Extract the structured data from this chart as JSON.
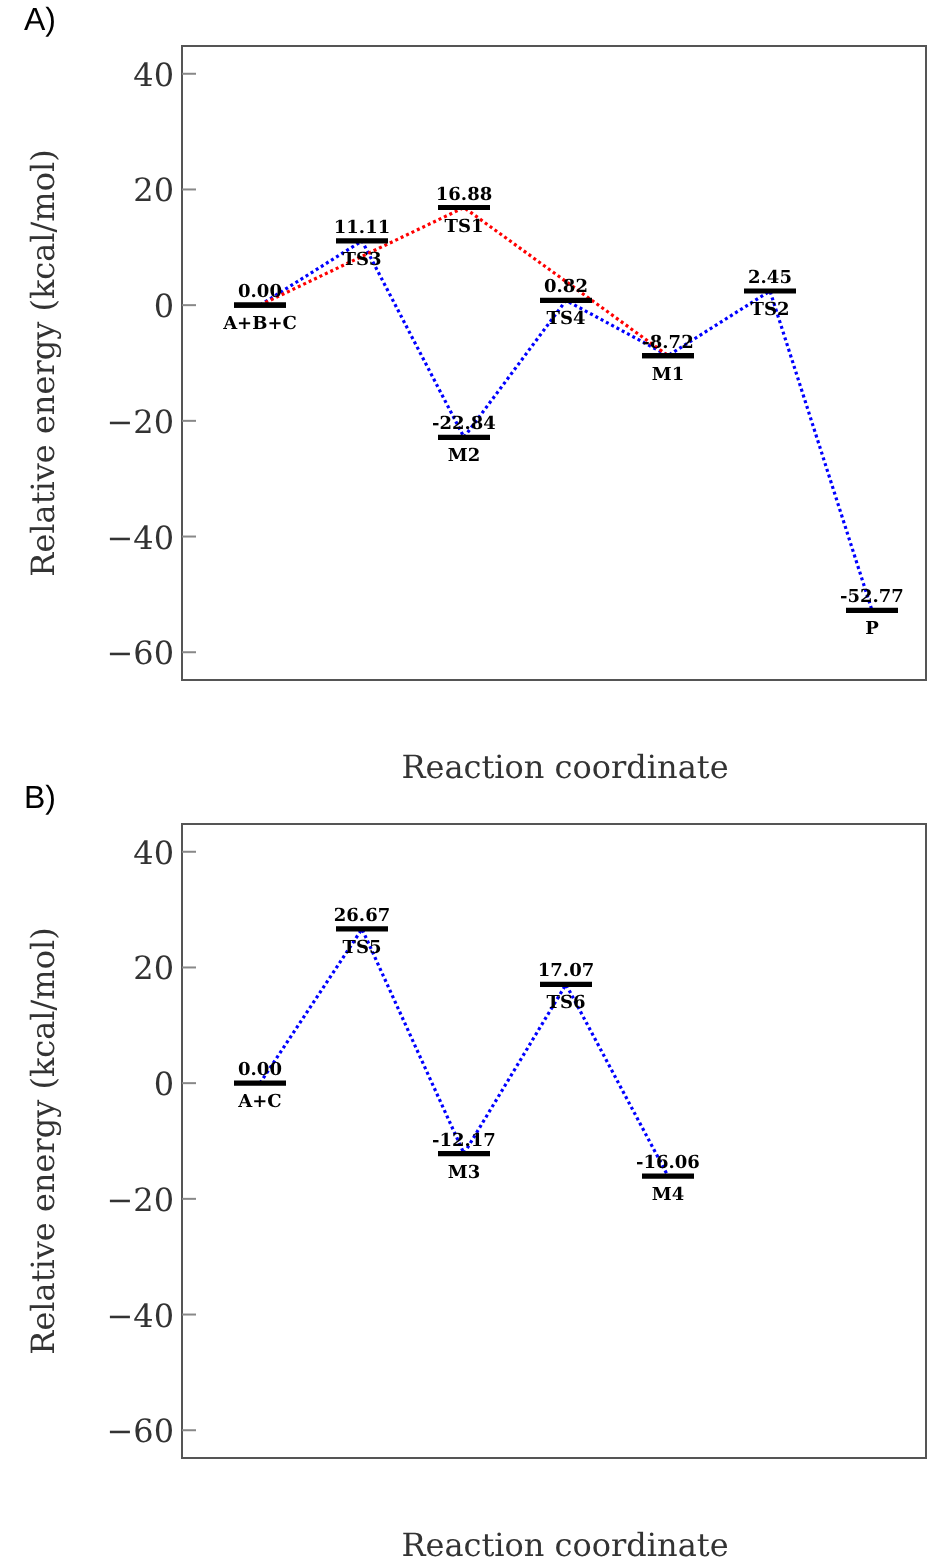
{
  "chart_data": [
    {
      "type": "line",
      "title": "A)",
      "xlabel": "Reaction coordinate",
      "ylabel": "Relative energy (kcal/mol)",
      "categories": [
        "A+B+C",
        "TS3",
        "M2",
        "TS4",
        "M1",
        "TS2",
        "P"
      ],
      "series": [
        {
          "color": "#0000ff",
          "values": [
            0,
            11.11,
            -22.84,
            0.82,
            -8.72,
            2.45,
            -52.77
          ],
          "value_labels": [
            "0.00",
            "11.11",
            "-22.84",
            "0.82",
            "-8.72",
            "2.45",
            "-52.77"
          ]
        },
        {
          "color": "#ff0000",
          "values": [
            0,
            null,
            16.88,
            null,
            -8.72,
            null,
            null
          ],
          "value_labels": [
            null,
            null,
            "16.88",
            null,
            null,
            null,
            null
          ]
        }
      ],
      "annotations": [
        {
          "text": "TS1",
          "x": "M2",
          "y": 16.88
        }
      ],
      "ylim": [
        -64.8,
        44.8
      ],
      "yticks": [
        {
          "value": -60,
          "label": "−60"
        },
        {
          "value": -40,
          "label": "−40"
        },
        {
          "value": -20,
          "label": "−20"
        },
        0,
        20,
        40
      ],
      "line_style": "dotted"
    },
    {
      "type": "line",
      "title": "B)",
      "xlabel": "Reaction coordinate",
      "ylabel": "Relative energy (kcal/mol)",
      "categories": [
        "A+C",
        "TS5",
        "M3",
        "TS6",
        "M4"
      ],
      "series": [
        {
          "color": "#0000ff",
          "values": [
            0,
            26.67,
            -12.17,
            17.07,
            -16.06
          ],
          "value_labels": [
            "0.00",
            "26.67",
            "-12.17",
            "17.07",
            "-16.06"
          ]
        }
      ],
      "ylim": [
        -64.8,
        44.8
      ],
      "yticks": [
        {
          "value": -60,
          "label": "−60"
        },
        {
          "value": -40,
          "label": "−40"
        },
        {
          "value": -20,
          "label": "−20"
        },
        0,
        20,
        40
      ],
      "line_style": "dotted"
    }
  ]
}
